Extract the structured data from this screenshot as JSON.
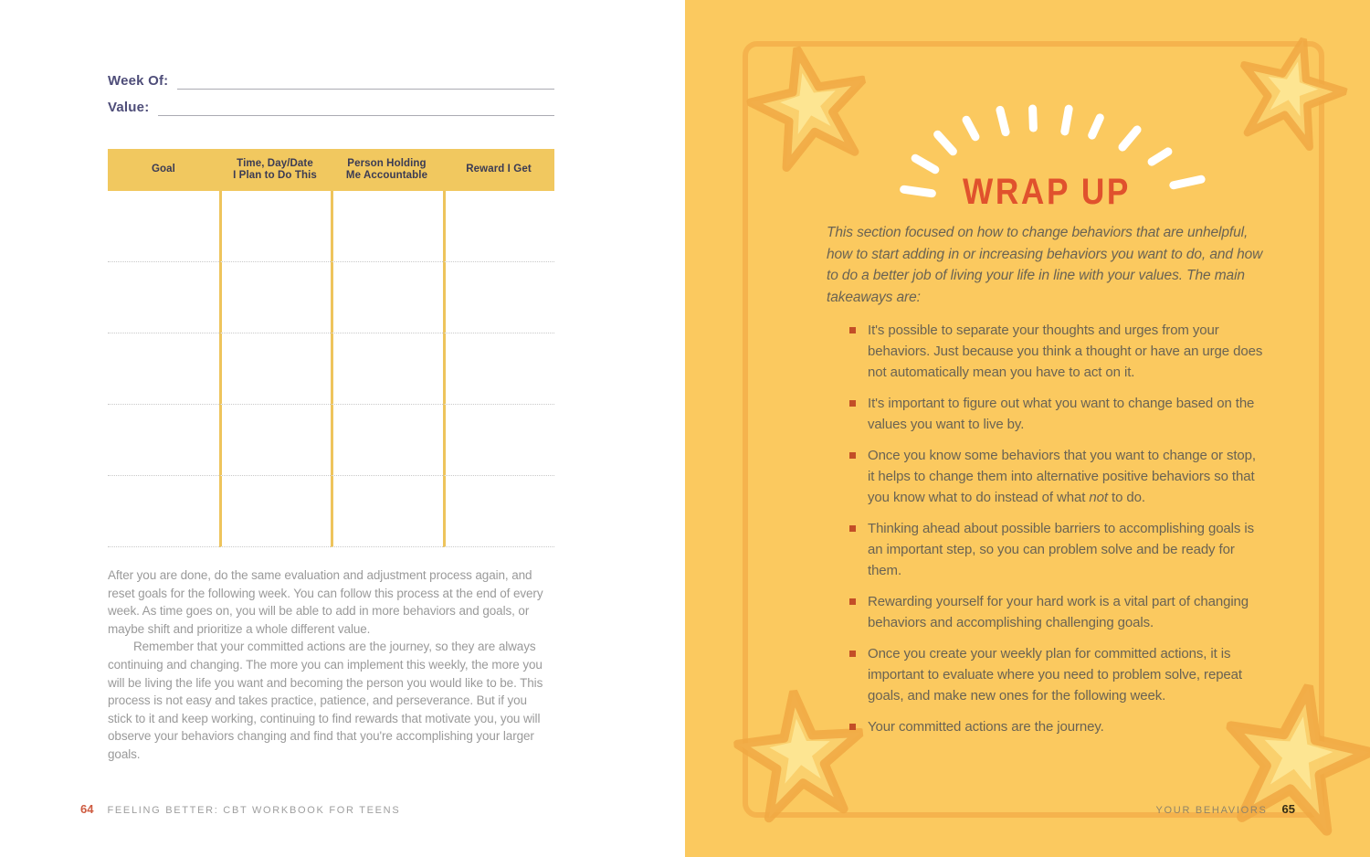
{
  "left_page": {
    "week_of_label": "Week Of:",
    "value_label": "Value:",
    "table": {
      "headers": [
        "Goal",
        "Time, Day/Date\nI Plan to Do This",
        "Person Holding\nMe Accountable",
        "Reward I Get"
      ],
      "row_count": 5
    },
    "paragraph_1": "After you are done, do the same evaluation and adjustment process again, and reset goals for the following week. You can follow this process at the end of every week. As time goes on, you will be able to add in more behaviors and goals, or maybe shift and prioritize a whole different value.",
    "paragraph_2": "Remember that your committed actions are the journey, so they are always continuing and changing. The more you can implement this weekly, the more you will be living the life you want and becoming the person you would like to be. This process is not easy and takes practice, patience, and perseverance. But if you stick to it and keep working, continuing to find rewards that motivate you, you will observe your behaviors changing and find that you're accomplishing your larger goals.",
    "footer": {
      "page_number": "64",
      "book_title": "FEELING BETTER: CBT WORKBOOK FOR TEENS"
    }
  },
  "right_page": {
    "heading": "WRAP UP",
    "intro": "This section focused on how to change behaviors that are unhelpful, how to start adding in or increasing behaviors you want to do, and how to do a better job of living your life in line with your values. The main takeaways are:",
    "bullets": [
      "It's possible to separate your thoughts and urges from your behaviors. Just because you think a thought or have an urge does not automatically mean you have to act on it.",
      "It's important to figure out what you want to change based on the values you want to live by.",
      "Once you know some behaviors that you want to change or stop, it helps to change them into alternative positive behaviors so that you know what to do instead of what *not* to do.",
      "Thinking ahead about possible barriers to accomplishing goals is an important step, so you can problem solve and be ready for them.",
      "Rewarding yourself for your hard work is a vital part of changing behaviors and accomplishing challenging goals.",
      "Once you create your weekly plan for committed actions, it is important to evaluate where you need to problem solve, repeat goals, and make new ones for the following week.",
      "Your committed actions are the journey."
    ],
    "footer": {
      "chapter_title": "YOUR BEHAVIORS",
      "page_number": "65"
    }
  },
  "colors": {
    "page_yellow": "#FBC95F",
    "accent_orange": "#E0522D",
    "bullet_red": "#C34E27",
    "frame_gold": "#F0A742",
    "header_indigo": "#4E4D79",
    "table_header_bg": "#F1C85F",
    "page_number_red": "#CE5B40"
  }
}
